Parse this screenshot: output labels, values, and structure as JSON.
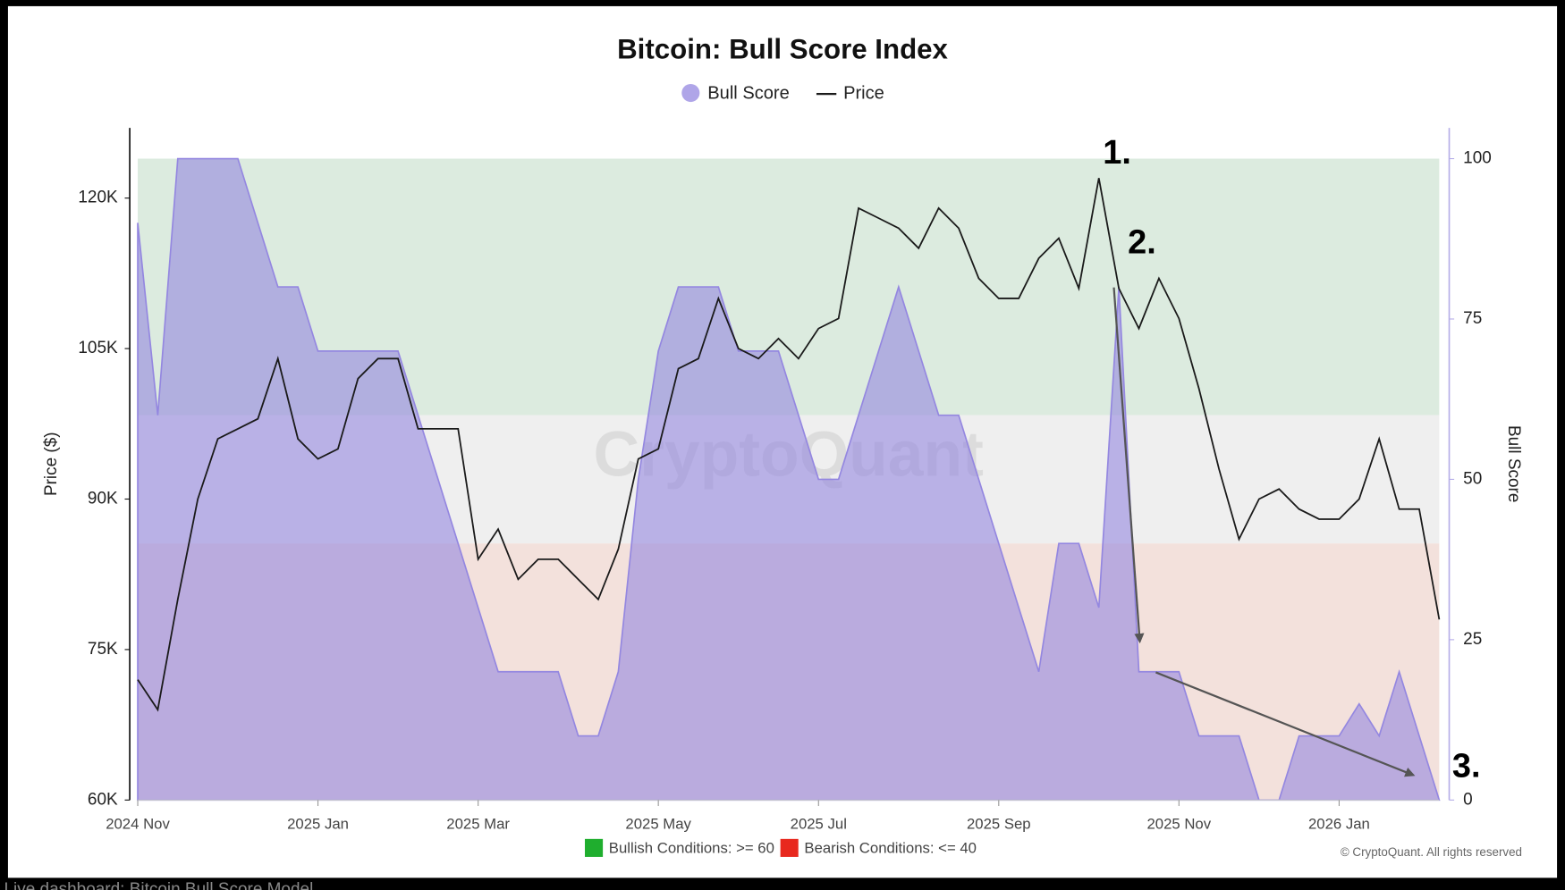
{
  "chart_data": {
    "type": "area_line",
    "title": "Bitcoin: Bull Score Index",
    "ylabel": "Price ($)",
    "y2label": "Bull Score",
    "watermark": "CryptoQuant",
    "copyright": "© CryptoQuant. All rights reserved",
    "footer": "Live dashboard: Bitcoin Bull Score Model",
    "annotations": [
      "1.",
      "2.",
      "3."
    ],
    "categories": [
      "2024 Nov",
      null,
      null,
      null,
      null,
      null,
      null,
      null,
      null,
      "2025 Jan",
      null,
      null,
      null,
      null,
      null,
      null,
      null,
      "2025 Mar",
      null,
      null,
      null,
      null,
      null,
      null,
      null,
      null,
      "2025 May",
      null,
      null,
      null,
      null,
      null,
      null,
      null,
      "2025 Jul",
      null,
      null,
      null,
      null,
      null,
      null,
      null,
      null,
      "2025 Sep",
      null,
      null,
      null,
      null,
      null,
      null,
      null,
      null,
      "2025 Nov",
      null,
      null,
      null,
      null,
      null,
      null,
      null,
      "2026 Jan",
      null,
      null,
      null,
      null,
      null
    ],
    "series": [
      {
        "name": "Bull Score",
        "color": "#9487e0",
        "axis": "y2",
        "values": [
          90,
          60,
          100,
          100,
          100,
          100,
          90,
          80,
          80,
          70,
          70,
          70,
          70,
          70,
          60,
          50,
          40,
          30,
          20,
          20,
          20,
          20,
          10,
          10,
          20,
          50,
          70,
          80,
          80,
          80,
          70,
          70,
          70,
          60,
          50,
          50,
          60,
          70,
          80,
          70,
          60,
          60,
          50,
          40,
          30,
          20,
          40,
          40,
          30,
          80,
          20,
          20,
          20,
          10,
          10,
          10,
          0,
          0,
          10,
          10,
          10,
          15,
          10,
          20,
          10,
          0
        ]
      },
      {
        "name": "Price",
        "color": "#1a1a1a",
        "values": [
          72000,
          69000,
          80000,
          90000,
          96000,
          97000,
          98000,
          104000,
          96000,
          94000,
          95000,
          102000,
          104000,
          104000,
          97000,
          97000,
          97000,
          84000,
          87000,
          82000,
          84000,
          84000,
          82000,
          80000,
          85000,
          94000,
          95000,
          103000,
          104000,
          110000,
          105000,
          104000,
          106000,
          104000,
          107000,
          108000,
          119000,
          118000,
          117000,
          115000,
          119000,
          117000,
          112000,
          110000,
          110000,
          114000,
          116000,
          111000,
          122000,
          111000,
          107000,
          112000,
          108000,
          101000,
          93000,
          86000,
          90000,
          91000,
          89000,
          88000,
          88000,
          90000,
          96000,
          89000,
          89000,
          78000
        ]
      }
    ],
    "zones": [
      {
        "from": 60,
        "to": 100,
        "color": "#dcebdf",
        "label": "Bullish Conditions: >= 60",
        "key_color": "#1fae2e"
      },
      {
        "from": 40,
        "to": 60,
        "color": "#efefef"
      },
      {
        "from": 0,
        "to": 40,
        "color": "#f3e1dc",
        "label": "Bearish Conditions: <= 40",
        "key_color": "#e8281e"
      }
    ],
    "ylim": [
      60000,
      127000
    ],
    "yticks": [
      {
        "value": 60000,
        "label": "60K"
      },
      {
        "value": 75000,
        "label": "75K"
      },
      {
        "value": 90000,
        "label": "90K"
      },
      {
        "value": 105000,
        "label": "105K"
      },
      {
        "value": 120000,
        "label": "120K"
      }
    ],
    "y2lim": [
      0,
      104.8
    ],
    "y2ticks": [
      0,
      25,
      50,
      75,
      100
    ]
  }
}
